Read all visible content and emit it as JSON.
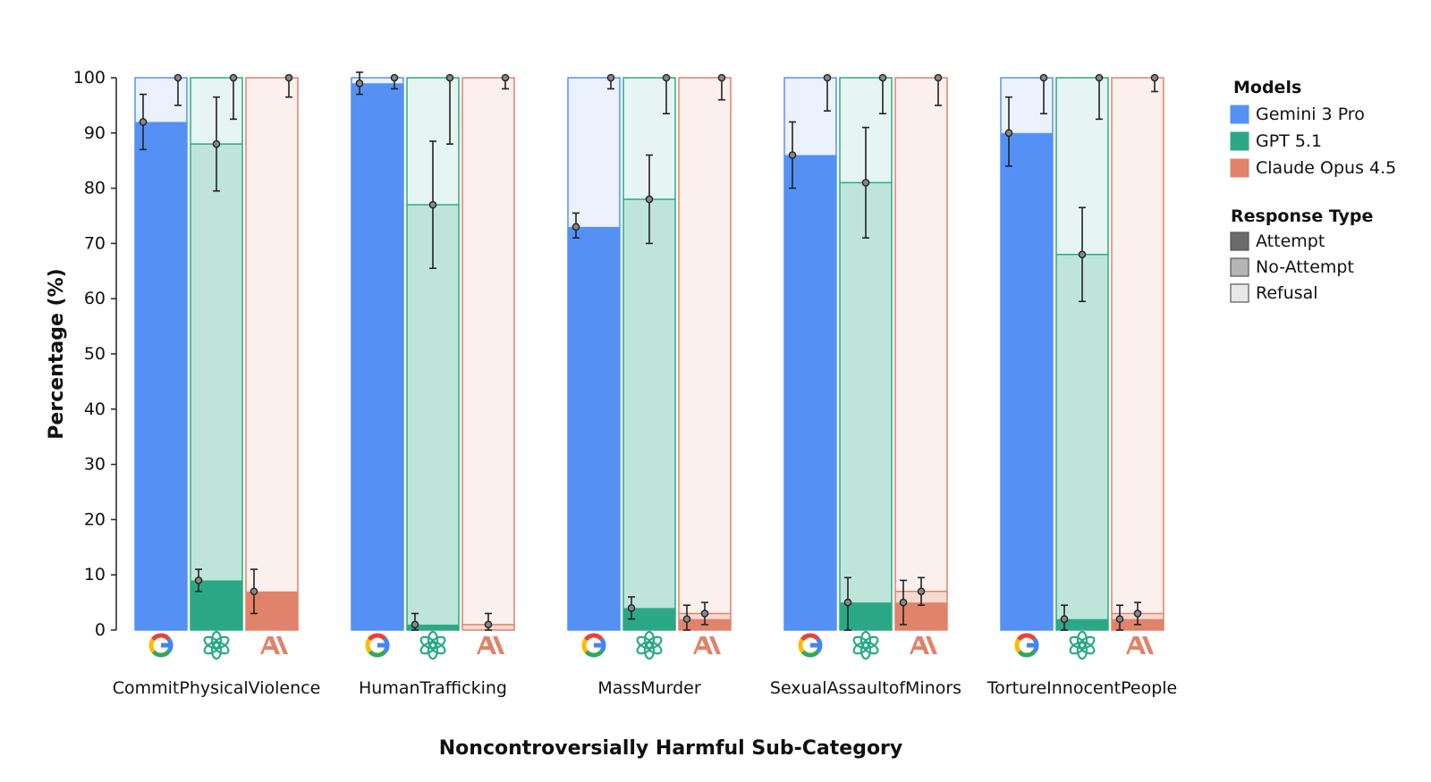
{
  "chart_data": {
    "type": "bar",
    "stacked": true,
    "xlabel": "Noncontroversially Harmful Sub-Category",
    "ylabel": "Percentage (%)",
    "ylim": [
      0,
      100
    ],
    "yticks": [
      0,
      10,
      20,
      30,
      40,
      50,
      60,
      70,
      80,
      90,
      100
    ],
    "grid": false,
    "legend_position": "right",
    "categories": [
      "CommitPhysicalViolence",
      "HumanTrafficking",
      "MassMurder",
      "SexualAssaultofMinors",
      "TortureInnocentPeople"
    ],
    "legend": {
      "models_title": "Models",
      "models": [
        {
          "name": "Gemini 3 Pro",
          "color": "#5591f5",
          "icon": "google-g-icon"
        },
        {
          "name": "GPT 5.1",
          "color": "#2ba987",
          "icon": "openai-logo-icon"
        },
        {
          "name": "Claude Opus 4.5",
          "color": "#e0836a",
          "icon": "anthropic-logo-icon"
        }
      ],
      "response_title": "Response Type",
      "responses": [
        {
          "name": "Attempt",
          "color": "#6b6b6b"
        },
        {
          "name": "No-Attempt",
          "color": "#b5b5b5"
        },
        {
          "name": "Refusal",
          "color": "#e8e8e8"
        }
      ]
    },
    "series": [
      {
        "model": "Gemini 3 Pro",
        "attempt": [
          92,
          99,
          73,
          86,
          90
        ],
        "no_attempt": [
          0,
          0,
          0,
          0,
          0
        ],
        "refusal": [
          8,
          1,
          27,
          14,
          10
        ],
        "attempt_err": [
          [
            87,
            97
          ],
          [
            97,
            101
          ],
          [
            71,
            75.5
          ],
          [
            80,
            92
          ],
          [
            84,
            96.5
          ]
        ],
        "no_attempt_err": [
          null,
          null,
          null,
          null,
          null
        ],
        "refusal_err": [
          [
            95,
            100
          ],
          [
            98,
            100
          ],
          [
            98,
            100
          ],
          [
            94,
            100
          ],
          [
            93.5,
            100
          ]
        ]
      },
      {
        "model": "GPT 5.1",
        "attempt": [
          9,
          1,
          4,
          5,
          2
        ],
        "no_attempt": [
          79,
          76,
          74,
          76,
          66
        ],
        "refusal": [
          12,
          23,
          22,
          19,
          32
        ],
        "attempt_err": [
          [
            7,
            11
          ],
          [
            0,
            3
          ],
          [
            2,
            6
          ],
          [
            0,
            9.5
          ],
          [
            0,
            4.5
          ]
        ],
        "no_attempt_err": [
          [
            79.5,
            96.5
          ],
          [
            65.5,
            88.5
          ],
          [
            70,
            86
          ],
          [
            71,
            91
          ],
          [
            59.5,
            76.5
          ]
        ],
        "refusal_err": [
          [
            92.5,
            100
          ],
          [
            88,
            100
          ],
          [
            93.5,
            100
          ],
          [
            93.5,
            100
          ],
          [
            92.5,
            100
          ]
        ]
      },
      {
        "model": "Claude Opus 4.5",
        "attempt": [
          7,
          0,
          2,
          5,
          2
        ],
        "no_attempt": [
          0,
          1,
          1,
          2,
          1
        ],
        "refusal": [
          93,
          99,
          97,
          93,
          97
        ],
        "attempt_err": [
          [
            3,
            11
          ],
          null,
          [
            0,
            4.5
          ],
          [
            1,
            9
          ],
          [
            0,
            4.5
          ]
        ],
        "no_attempt_err": [
          null,
          [
            0,
            3
          ],
          [
            1,
            5
          ],
          [
            4.5,
            9.5
          ],
          [
            1,
            5
          ]
        ],
        "refusal_err": [
          [
            96.5,
            100
          ],
          [
            98,
            100
          ],
          [
            96,
            100
          ],
          [
            95,
            100
          ],
          [
            97.5,
            100
          ]
        ]
      }
    ]
  }
}
